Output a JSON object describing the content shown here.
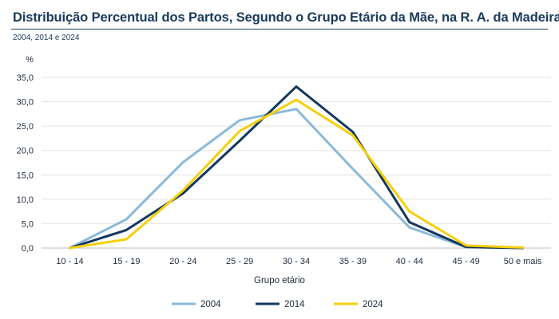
{
  "header": {
    "title": "Distribuição Percentual dos Partos, Segundo o Grupo Etário da Mãe, na R. A. da Madeira",
    "subtitle": "2004, 2014 e 2024"
  },
  "colors": {
    "title": "#1b3a5c",
    "grid": "#e3e3e3",
    "axis": "#bfbfbf"
  },
  "chart_data": {
    "type": "line",
    "title": "Distribuição Percentual dos Partos, Segundo o Grupo Etário da Mãe, na R. A. da Madeira",
    "subtitle": "2004, 2014 e 2024",
    "xlabel": "Grupo etário",
    "ylabel": "%",
    "ylim": [
      0,
      35
    ],
    "yticks": [
      "0,0",
      "5,0",
      "10,0",
      "15,0",
      "20,0",
      "25,0",
      "30,0",
      "35,0"
    ],
    "ytick_values": [
      0,
      5,
      10,
      15,
      20,
      25,
      30,
      35
    ],
    "categories": [
      "10 - 14",
      "15 - 19",
      "20 - 24",
      "25 - 29",
      "30 - 34",
      "35 - 39",
      "40 - 44",
      "45 - 49",
      "50 e mais"
    ],
    "grid": true,
    "legend_position": "bottom",
    "series": [
      {
        "name": "2004",
        "color": "#8bb9da",
        "values": [
          0.0,
          5.9,
          17.6,
          26.2,
          28.5,
          16.2,
          4.2,
          0.2,
          0.0
        ]
      },
      {
        "name": "2014",
        "color": "#14375e",
        "values": [
          0.0,
          3.7,
          11.2,
          22.0,
          33.1,
          23.8,
          5.3,
          0.2,
          0.0
        ]
      },
      {
        "name": "2024",
        "color": "#f5cf0d",
        "values": [
          0.0,
          1.8,
          11.8,
          24.0,
          30.4,
          23.1,
          7.5,
          0.5,
          0.1
        ]
      }
    ]
  }
}
